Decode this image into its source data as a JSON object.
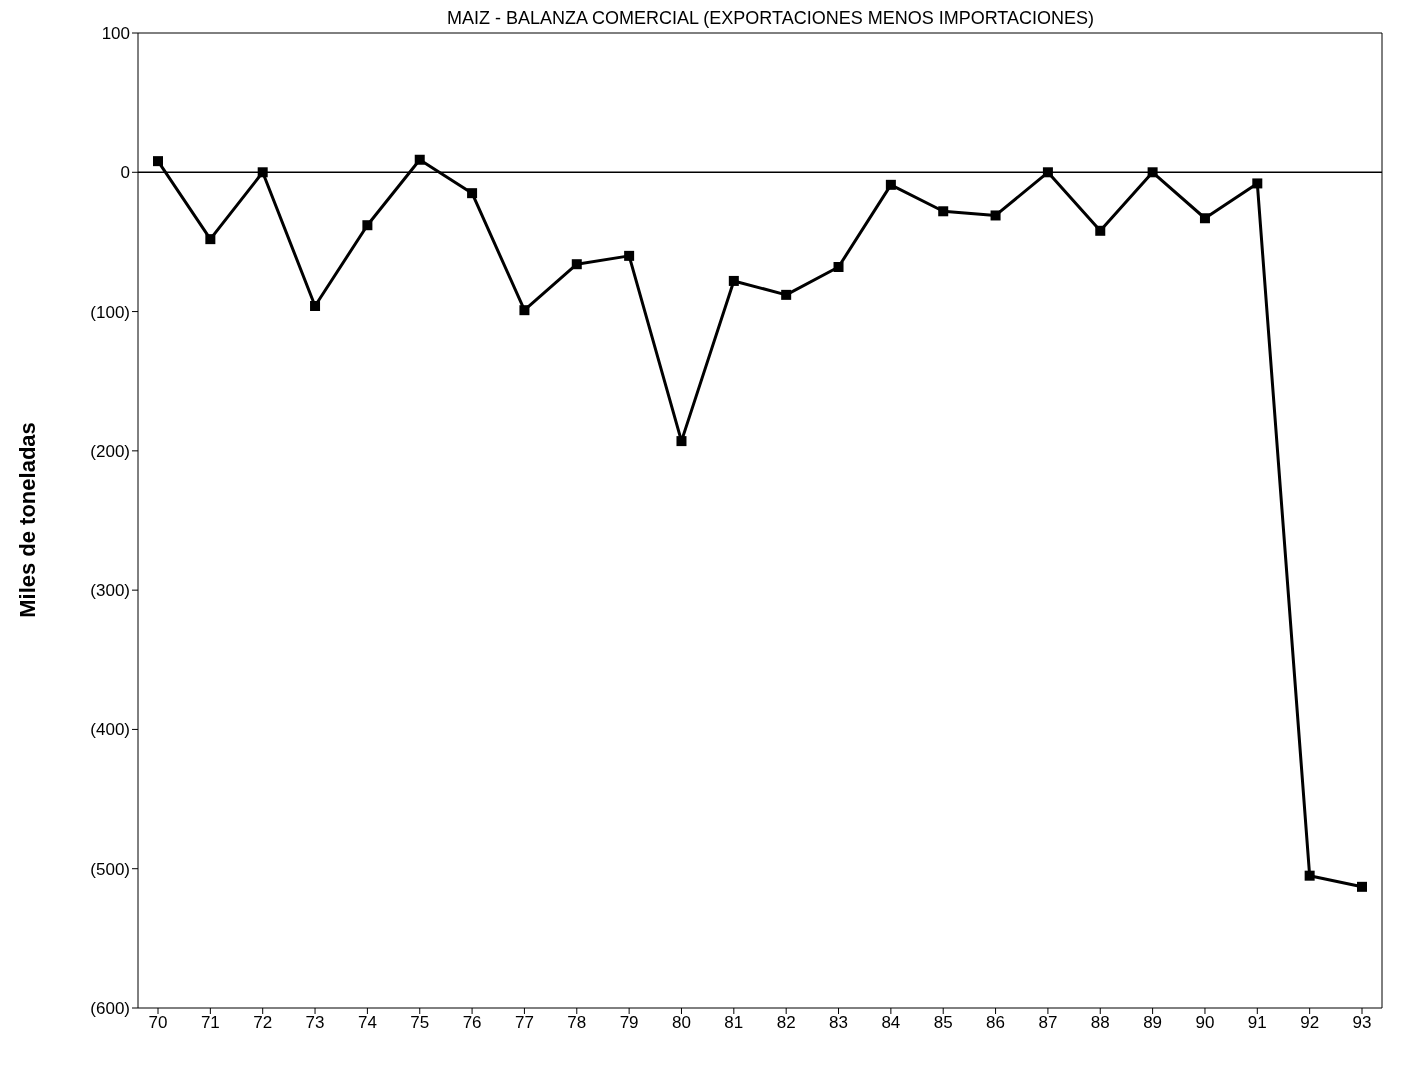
{
  "chart_data": {
    "type": "line",
    "title": "MAIZ - BALANZA COMERCIAL (EXPORTACIONES MENOS IMPORTACIONES)",
    "ylabel": "Miles de toneladas",
    "categories": [
      "70",
      "71",
      "72",
      "73",
      "74",
      "75",
      "76",
      "77",
      "78",
      "79",
      "80",
      "81",
      "82",
      "83",
      "84",
      "85",
      "86",
      "87",
      "88",
      "89",
      "90",
      "91",
      "92",
      "93"
    ],
    "series": [
      {
        "color": "#000000",
        "values": [
          8,
          -48,
          0,
          -96,
          -38,
          9,
          -15,
          -99,
          -66,
          -60,
          -193,
          -78,
          -88,
          -68,
          -9,
          -28,
          -31,
          0,
          -42,
          0,
          -33,
          -8,
          -505,
          -513
        ]
      }
    ],
    "ylim": [
      -600,
      100
    ],
    "yticks": [
      {
        "value": -600,
        "label": "(600)"
      },
      {
        "value": -500,
        "label": "(500)"
      },
      {
        "value": -400,
        "label": "(400)"
      },
      {
        "value": -300,
        "label": "(300)"
      },
      {
        "value": -200,
        "label": "(200)"
      },
      {
        "value": -100,
        "label": "(100)"
      },
      0,
      100
    ],
    "ref_lines": [
      {
        "axis": "y",
        "value": 0,
        "color": "#000000"
      }
    ],
    "grid": false,
    "legend": false,
    "marker": "square",
    "line_style": "solid"
  }
}
